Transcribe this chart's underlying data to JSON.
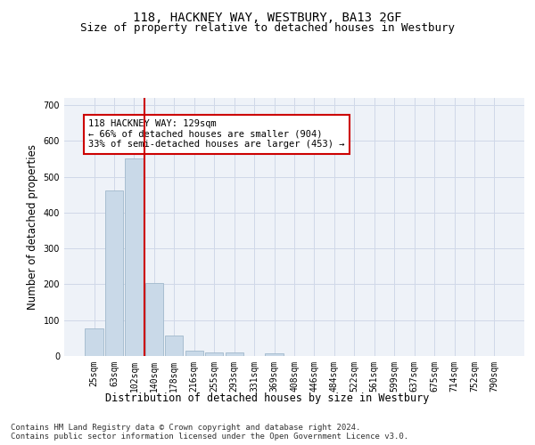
{
  "title": "118, HACKNEY WAY, WESTBURY, BA13 2GF",
  "subtitle": "Size of property relative to detached houses in Westbury",
  "xlabel": "Distribution of detached houses by size in Westbury",
  "ylabel": "Number of detached properties",
  "bar_labels": [
    "25sqm",
    "63sqm",
    "102sqm",
    "140sqm",
    "178sqm",
    "216sqm",
    "255sqm",
    "293sqm",
    "331sqm",
    "369sqm",
    "408sqm",
    "446sqm",
    "484sqm",
    "522sqm",
    "561sqm",
    "599sqm",
    "637sqm",
    "675sqm",
    "714sqm",
    "752sqm",
    "790sqm"
  ],
  "bar_values": [
    78,
    462,
    550,
    203,
    57,
    14,
    10,
    10,
    0,
    8,
    0,
    0,
    0,
    0,
    0,
    0,
    0,
    0,
    0,
    0,
    0
  ],
  "bar_color": "#c9d9e8",
  "bar_edge_color": "#a0b8cc",
  "grid_color": "#d0d8e8",
  "background_color": "#eef2f8",
  "vline_x_idx": 2,
  "vline_color": "#cc0000",
  "annotation_text": "118 HACKNEY WAY: 129sqm\n← 66% of detached houses are smaller (904)\n33% of semi-detached houses are larger (453) →",
  "annotation_box_color": "#ffffff",
  "annotation_box_edge": "#cc0000",
  "ylim": [
    0,
    720
  ],
  "yticks": [
    0,
    100,
    200,
    300,
    400,
    500,
    600,
    700
  ],
  "footnote": "Contains HM Land Registry data © Crown copyright and database right 2024.\nContains public sector information licensed under the Open Government Licence v3.0.",
  "title_fontsize": 10,
  "subtitle_fontsize": 9,
  "label_fontsize": 8.5,
  "tick_fontsize": 7,
  "annot_fontsize": 7.5,
  "footnote_fontsize": 6.5
}
